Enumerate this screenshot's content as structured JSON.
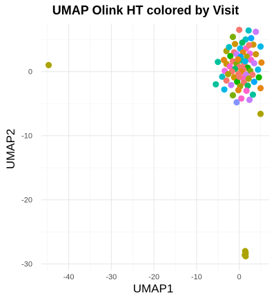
{
  "chart_data": {
    "type": "scatter",
    "title": "UMAP Olink HT colored by Visit",
    "xlabel": "UMAP1",
    "ylabel": "UMAP2",
    "xlim": [
      -46.4,
      7.0
    ],
    "ylim": [
      -31.0,
      7.5
    ],
    "x_ticks": [
      -40,
      -30,
      -20,
      -10,
      0
    ],
    "y_ticks": [
      0,
      -10,
      -20,
      -30
    ],
    "grid": true,
    "legend": "none",
    "colors": [
      "#F8766D",
      "#E68613",
      "#CD9600",
      "#ABA300",
      "#7CAE00",
      "#0CB702",
      "#00BE67",
      "#00C19A",
      "#00BFC4",
      "#00B8E7",
      "#00A9FF",
      "#8494FF",
      "#C77CFF",
      "#ED68ED",
      "#FF61CC"
    ],
    "points": [
      {
        "x": -44.7,
        "y": 1.0,
        "c": 3
      },
      {
        "x": 5.0,
        "y": -6.6,
        "c": 3
      },
      {
        "x": 1.4,
        "y": -28.0,
        "c": 3
      },
      {
        "x": 1.5,
        "y": -28.3,
        "c": 3
      },
      {
        "x": 1.3,
        "y": -28.6,
        "c": 3
      },
      {
        "x": 1.5,
        "y": -28.8,
        "c": 3
      },
      {
        "x": 0.0,
        "y": 6.5,
        "c": 0
      },
      {
        "x": 2.2,
        "y": 6.4,
        "c": 8
      },
      {
        "x": 3.9,
        "y": 6.2,
        "c": 12
      },
      {
        "x": -1.5,
        "y": 5.4,
        "c": 4
      },
      {
        "x": 1.5,
        "y": 5.0,
        "c": 8
      },
      {
        "x": 2.8,
        "y": 5.2,
        "c": 10
      },
      {
        "x": 0.7,
        "y": 4.5,
        "c": 6
      },
      {
        "x": 3.3,
        "y": 4.2,
        "c": 2
      },
      {
        "x": 0.2,
        "y": 3.6,
        "c": 9
      },
      {
        "x": 5.0,
        "y": 3.9,
        "c": 9
      },
      {
        "x": -3.0,
        "y": 3.2,
        "c": 3
      },
      {
        "x": 1.6,
        "y": 3.6,
        "c": 14
      },
      {
        "x": -1.2,
        "y": 3.0,
        "c": 0
      },
      {
        "x": 0.9,
        "y": 3.0,
        "c": 1
      },
      {
        "x": -0.6,
        "y": 2.7,
        "c": 12
      },
      {
        "x": 2.5,
        "y": 2.8,
        "c": 13
      },
      {
        "x": 3.9,
        "y": 2.7,
        "c": 2
      },
      {
        "x": -2.1,
        "y": 2.4,
        "c": 5
      },
      {
        "x": 0.3,
        "y": 2.3,
        "c": 10
      },
      {
        "x": 1.8,
        "y": 2.3,
        "c": 3
      },
      {
        "x": -3.6,
        "y": 1.8,
        "c": 1
      },
      {
        "x": -1.5,
        "y": 1.6,
        "c": 0
      },
      {
        "x": 0.6,
        "y": 1.7,
        "c": 7
      },
      {
        "x": 2.8,
        "y": 1.8,
        "c": 14
      },
      {
        "x": -5.0,
        "y": 1.5,
        "c": 7
      },
      {
        "x": -3.0,
        "y": 1.2,
        "c": 2
      },
      {
        "x": -0.6,
        "y": 1.2,
        "c": 4
      },
      {
        "x": 1.2,
        "y": 1.1,
        "c": 0
      },
      {
        "x": 3.5,
        "y": 1.3,
        "c": 12
      },
      {
        "x": 5.2,
        "y": 1.4,
        "c": 1
      },
      {
        "x": -2.2,
        "y": 0.8,
        "c": 14
      },
      {
        "x": 0.0,
        "y": 0.7,
        "c": 0
      },
      {
        "x": 2.0,
        "y": 0.6,
        "c": 5
      },
      {
        "x": -1.0,
        "y": 0.4,
        "c": 6
      },
      {
        "x": 1.0,
        "y": 0.3,
        "c": 0
      },
      {
        "x": -3.4,
        "y": 0.1,
        "c": 13
      },
      {
        "x": -1.7,
        "y": 0.0,
        "c": 0
      },
      {
        "x": 0.5,
        "y": 0.0,
        "c": 1
      },
      {
        "x": 2.6,
        "y": 0.1,
        "c": 4
      },
      {
        "x": 4.4,
        "y": 0.3,
        "c": 9
      },
      {
        "x": -2.6,
        "y": -0.4,
        "c": 3
      },
      {
        "x": -0.2,
        "y": -0.4,
        "c": 0
      },
      {
        "x": 1.6,
        "y": -0.5,
        "c": 12
      },
      {
        "x": 3.1,
        "y": -0.5,
        "c": 0
      },
      {
        "x": -4.0,
        "y": -0.8,
        "c": 8
      },
      {
        "x": -1.2,
        "y": -0.9,
        "c": 2
      },
      {
        "x": 0.8,
        "y": -1.0,
        "c": 14
      },
      {
        "x": 2.2,
        "y": -1.1,
        "c": 3
      },
      {
        "x": 4.6,
        "y": -0.9,
        "c": 5
      },
      {
        "x": -3.0,
        "y": -1.4,
        "c": 0
      },
      {
        "x": -0.5,
        "y": -1.6,
        "c": 5
      },
      {
        "x": 1.1,
        "y": -1.7,
        "c": 0
      },
      {
        "x": 3.5,
        "y": -1.6,
        "c": 10
      },
      {
        "x": -5.5,
        "y": -2.0,
        "c": 7
      },
      {
        "x": -1.9,
        "y": -2.1,
        "c": 12
      },
      {
        "x": 0.2,
        "y": -2.3,
        "c": 3
      },
      {
        "x": 2.0,
        "y": -2.2,
        "c": 6
      },
      {
        "x": 5.0,
        "y": -2.6,
        "c": 1
      },
      {
        "x": -3.5,
        "y": -2.8,
        "c": 9
      },
      {
        "x": -0.2,
        "y": -2.9,
        "c": 1
      },
      {
        "x": 1.7,
        "y": -3.0,
        "c": 14
      },
      {
        "x": 3.2,
        "y": -3.6,
        "c": 7
      },
      {
        "x": -1.5,
        "y": -3.7,
        "c": 4
      },
      {
        "x": 0.5,
        "y": -4.2,
        "c": 14
      },
      {
        "x": 2.4,
        "y": -4.4,
        "c": 12
      },
      {
        "x": -0.6,
        "y": -4.8,
        "c": 11
      },
      {
        "x": -1.0,
        "y": 4.3,
        "c": 2
      },
      {
        "x": 2.3,
        "y": 4.1,
        "c": 0
      },
      {
        "x": -0.3,
        "y": 1.9,
        "c": 1
      },
      {
        "x": 1.4,
        "y": 1.6,
        "c": 9
      },
      {
        "x": 0.0,
        "y": -0.8,
        "c": 0
      },
      {
        "x": -2.4,
        "y": 3.8,
        "c": 8
      }
    ]
  }
}
